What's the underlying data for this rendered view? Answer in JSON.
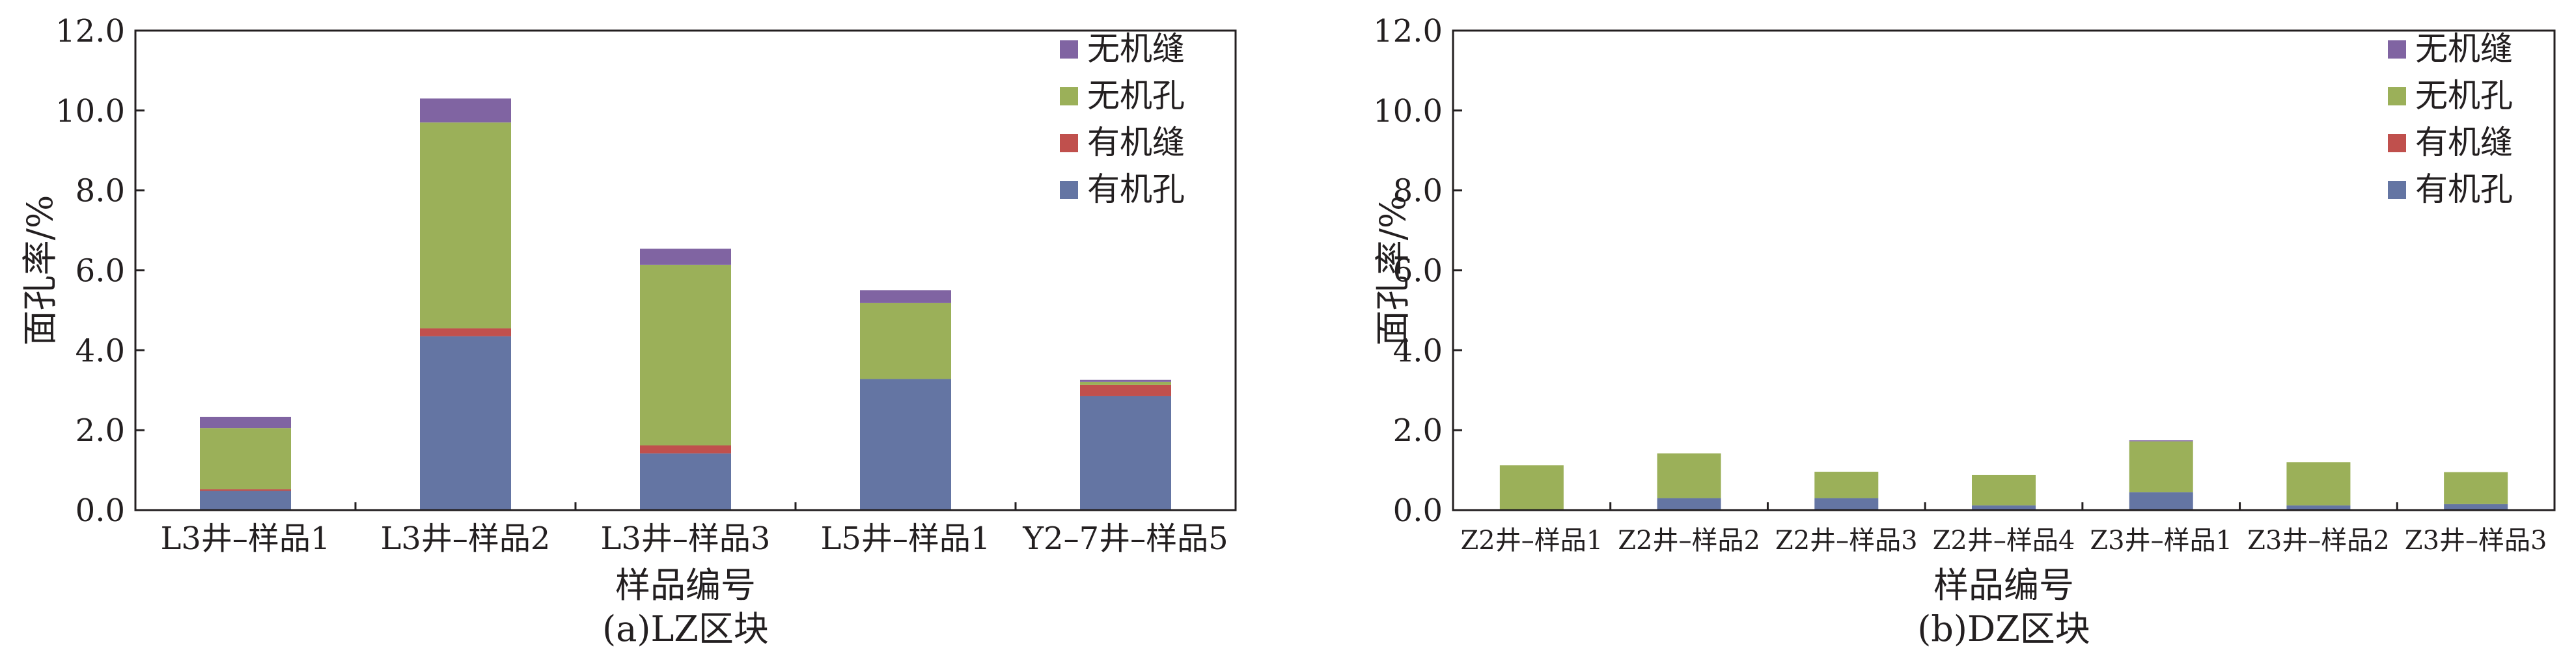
{
  "chart_data": [
    {
      "type": "bar",
      "stacked": true,
      "caption": "(a)LZ区块",
      "xlabel": "样品编号",
      "ylabel": "面孔率/%",
      "ylim": [
        0,
        12
      ],
      "yticks": [
        "0.0",
        "2.0",
        "4.0",
        "6.0",
        "8.0",
        "10.0",
        "12.0"
      ],
      "categories": [
        "L3井–样品1",
        "L3井–样品2",
        "L3井–样品3",
        "L5井–样品1",
        "Y2–7井–样品5"
      ],
      "legend_position": "top-right",
      "grid": false,
      "series": [
        {
          "name": "有机孔",
          "color": "#6475a3",
          "values": [
            0.48,
            4.35,
            1.42,
            3.28,
            2.85
          ]
        },
        {
          "name": "有机缝",
          "color": "#c0504d",
          "values": [
            0.04,
            0.2,
            0.2,
            0.0,
            0.28
          ]
        },
        {
          "name": "无机孔",
          "color": "#9bb059",
          "values": [
            1.53,
            5.15,
            4.52,
            1.9,
            0.08
          ]
        },
        {
          "name": "无机缝",
          "color": "#8064a2",
          "values": [
            0.28,
            0.6,
            0.4,
            0.32,
            0.05
          ]
        }
      ],
      "legend_order": [
        "无机缝",
        "无机孔",
        "有机缝",
        "有机孔"
      ]
    },
    {
      "type": "bar",
      "stacked": true,
      "caption": "(b)DZ区块",
      "xlabel": "样品编号",
      "ylabel": "面孔率/%",
      "ylim": [
        0,
        12
      ],
      "yticks": [
        "0.0",
        "2.0",
        "4.0",
        "6.0",
        "8.0",
        "10.0",
        "12.0"
      ],
      "categories": [
        "Z2井–样品1",
        "Z2井–样品2",
        "Z2井–样品3",
        "Z2井–样品4",
        "Z3井–样品1",
        "Z3井–样品2",
        "Z3井–样品3"
      ],
      "legend_position": "top-right",
      "grid": false,
      "series": [
        {
          "name": "有机孔",
          "color": "#6475a3",
          "values": [
            0.02,
            0.3,
            0.3,
            0.12,
            0.45,
            0.12,
            0.15
          ]
        },
        {
          "name": "有机缝",
          "color": "#c0504d",
          "values": [
            0.0,
            0.0,
            0.0,
            0.0,
            0.0,
            0.0,
            0.0
          ]
        },
        {
          "name": "无机孔",
          "color": "#9bb059",
          "values": [
            1.1,
            1.12,
            0.66,
            0.76,
            1.27,
            1.08,
            0.8
          ]
        },
        {
          "name": "无机缝",
          "color": "#8064a2",
          "values": [
            0.0,
            0.0,
            0.0,
            0.0,
            0.03,
            0.0,
            0.0
          ]
        }
      ],
      "legend_order": [
        "无机缝",
        "无机孔",
        "有机缝",
        "有机孔"
      ]
    }
  ]
}
